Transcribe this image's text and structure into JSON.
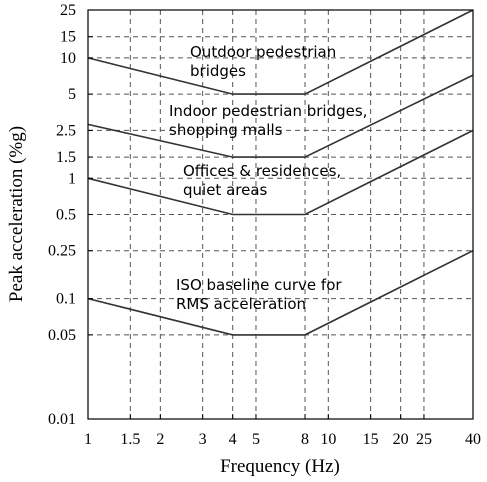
{
  "chart_data": {
    "type": "line",
    "title": "",
    "xlabel": "Frequency (Hz)",
    "ylabel": "Peak acceleration (%g)",
    "x_scale": "log",
    "y_scale": "log",
    "xlim": [
      1,
      40
    ],
    "ylim": [
      0.01,
      25
    ],
    "grid": true,
    "x_ticks": [
      {
        "value": 1,
        "label": "1"
      },
      {
        "value": 1.5,
        "label": "1.5"
      },
      {
        "value": 2,
        "label": "2"
      },
      {
        "value": 3,
        "label": "3"
      },
      {
        "value": 4,
        "label": "4"
      },
      {
        "value": 5,
        "label": "5"
      },
      {
        "value": 8,
        "label": "8"
      },
      {
        "value": 10,
        "label": "10"
      },
      {
        "value": 15,
        "label": "15"
      },
      {
        "value": 20,
        "label": "20"
      },
      {
        "value": 25,
        "label": "25"
      },
      {
        "value": 40,
        "label": "40"
      }
    ],
    "y_ticks": [
      {
        "value": 0.01,
        "label": "0.01"
      },
      {
        "value": 0.05,
        "label": "0.05"
      },
      {
        "value": 0.1,
        "label": "0.1"
      },
      {
        "value": 0.25,
        "label": "0.25"
      },
      {
        "value": 0.5,
        "label": "0.5"
      },
      {
        "value": 1,
        "label": "1"
      },
      {
        "value": 1.5,
        "label": "1.5"
      },
      {
        "value": 2.5,
        "label": "2.5"
      },
      {
        "value": 5,
        "label": "5"
      },
      {
        "value": 10,
        "label": "10"
      },
      {
        "value": 15,
        "label": "15"
      },
      {
        "value": 25,
        "label": "25"
      }
    ],
    "series": [
      {
        "label_lines": [
          "Outdoor pedestrian",
          "bridges"
        ],
        "points": [
          [
            1,
            10
          ],
          [
            4,
            5
          ],
          [
            8,
            5
          ],
          [
            40,
            25
          ]
        ]
      },
      {
        "label_lines": [
          "Indoor pedestrian bridges,",
          "shopping malls"
        ],
        "points": [
          [
            1,
            2.8
          ],
          [
            4,
            1.5
          ],
          [
            8,
            1.5
          ],
          [
            40,
            7.2
          ]
        ]
      },
      {
        "label_lines": [
          "Offices & residences,",
          "quiet areas"
        ],
        "points": [
          [
            1,
            1
          ],
          [
            4,
            0.5
          ],
          [
            8,
            0.5
          ],
          [
            40,
            2.5
          ]
        ]
      },
      {
        "label_lines": [
          "ISO baseline curve for",
          "RMS acceleration"
        ],
        "points": [
          [
            1,
            0.1
          ],
          [
            4,
            0.05
          ],
          [
            8,
            0.05
          ],
          [
            40,
            0.25
          ]
        ]
      }
    ]
  }
}
